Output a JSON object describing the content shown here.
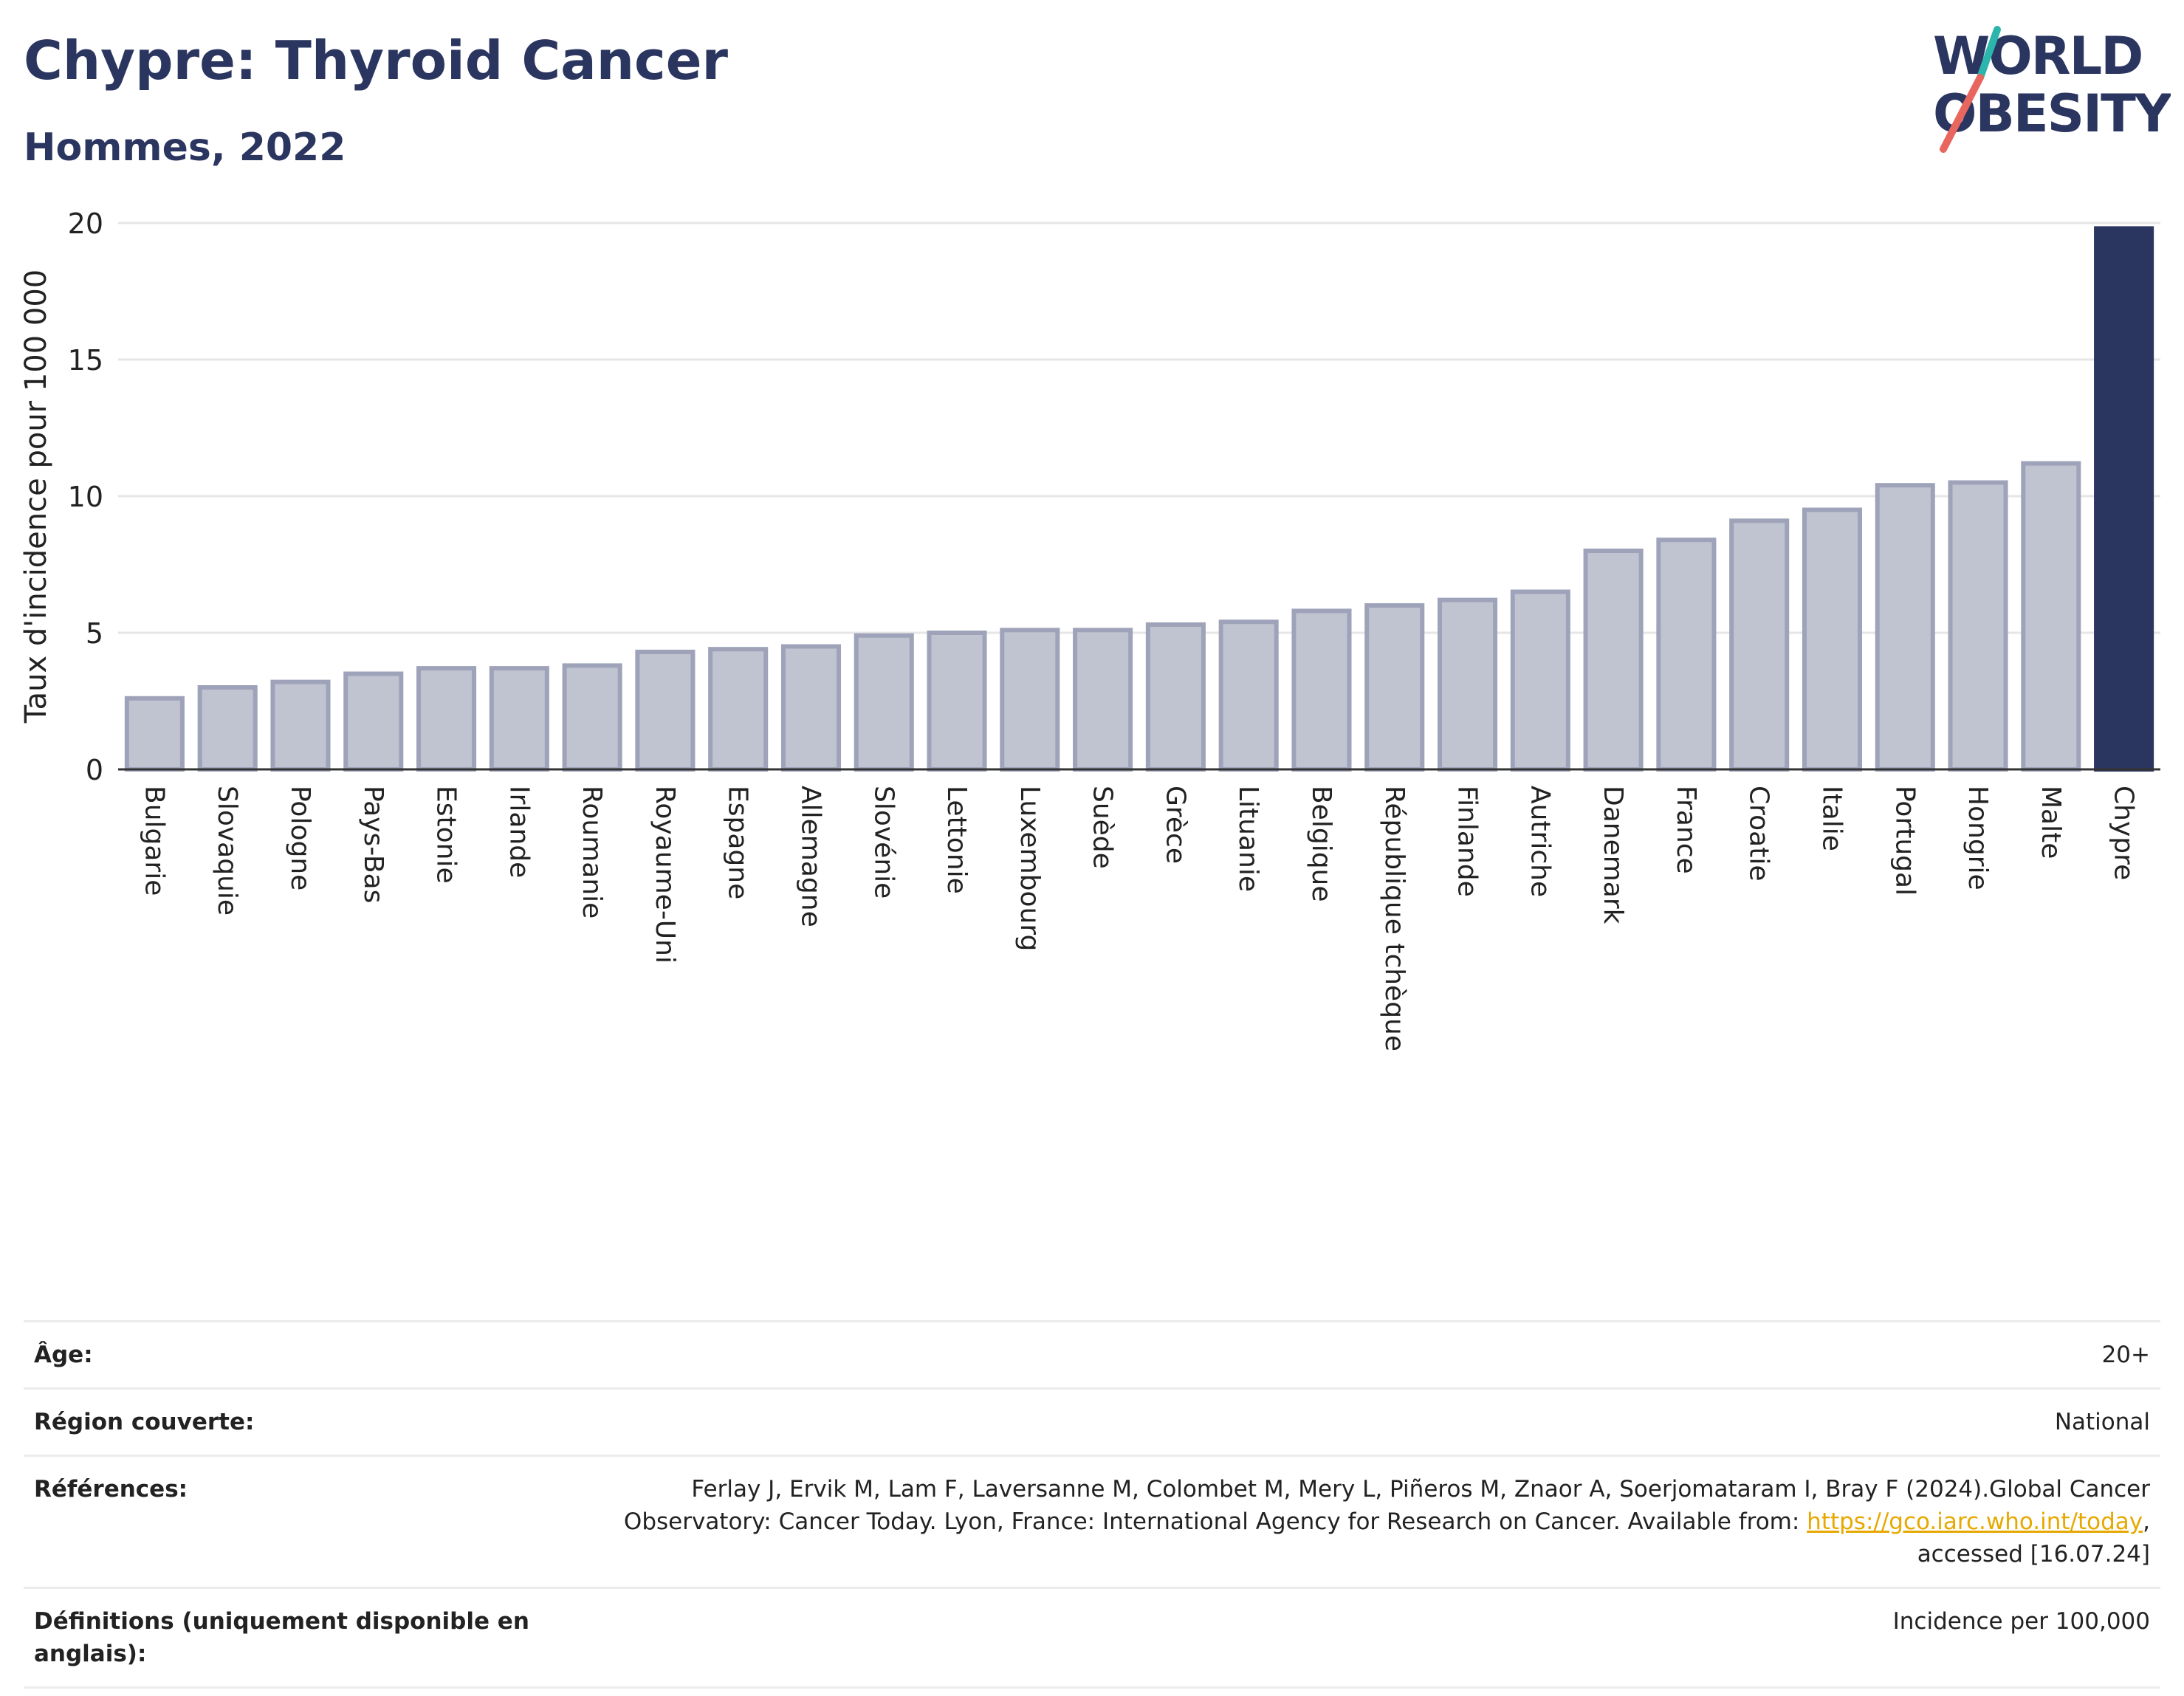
{
  "header": {
    "title": "Chypre: Thyroid Cancer",
    "subtitle": "Hommes, 2022",
    "logo_line1": "WORLD",
    "logo_line2": "OBESITY"
  },
  "chart_data": {
    "type": "bar",
    "ylabel": "Taux d'incidence pour 100 000",
    "ylim": [
      0,
      20
    ],
    "yticks": [
      0,
      5,
      10,
      15,
      20
    ],
    "grid": true,
    "categories": [
      "Bulgarie",
      "Slovaquie",
      "Pologne",
      "Pays-Bas",
      "Estonie",
      "Irlande",
      "Roumanie",
      "Royaume-Uni",
      "Espagne",
      "Allemagne",
      "Slovénie",
      "Lettonie",
      "Luxembourg",
      "Suède",
      "Grèce",
      "Lituanie",
      "Belgique",
      "République tchèque",
      "Finlande",
      "Autriche",
      "Danemark",
      "France",
      "Croatie",
      "Italie",
      "Portugal",
      "Hongrie",
      "Malte",
      "Chypre"
    ],
    "values": [
      2.6,
      3.0,
      3.2,
      3.5,
      3.7,
      3.7,
      3.8,
      4.3,
      4.4,
      4.5,
      4.9,
      5.0,
      5.1,
      5.1,
      5.3,
      5.4,
      5.8,
      6.0,
      6.2,
      6.5,
      8.0,
      8.4,
      9.1,
      9.5,
      10.4,
      10.5,
      11.2,
      19.8
    ],
    "highlight": "Chypre",
    "colors": {
      "highlight": "#2b3660",
      "bar_fill": "#c0c3d0",
      "bar_stroke": "#9ea3ba"
    }
  },
  "info": {
    "age_label": "Âge:",
    "age_value": "20+",
    "region_label": "Région couverte:",
    "region_value": "National",
    "ref_label": "Références:",
    "ref_text": "Ferlay J, Ervik M, Lam F, Laversanne M, Colombet M, Mery L, Piñeros M, Znaor A, Soerjomataram I, Bray F (2024).Global Cancer Observatory: Cancer Today. Lyon, France: International Agency for Research on Cancer. Available from: ",
    "ref_link": "https://gco.iarc.who.int/today",
    "ref_suffix": ", accessed [16.07.24]",
    "def_label": "Définitions (uniquement disponible en anglais):",
    "def_value": "Incidence per 100,000"
  }
}
